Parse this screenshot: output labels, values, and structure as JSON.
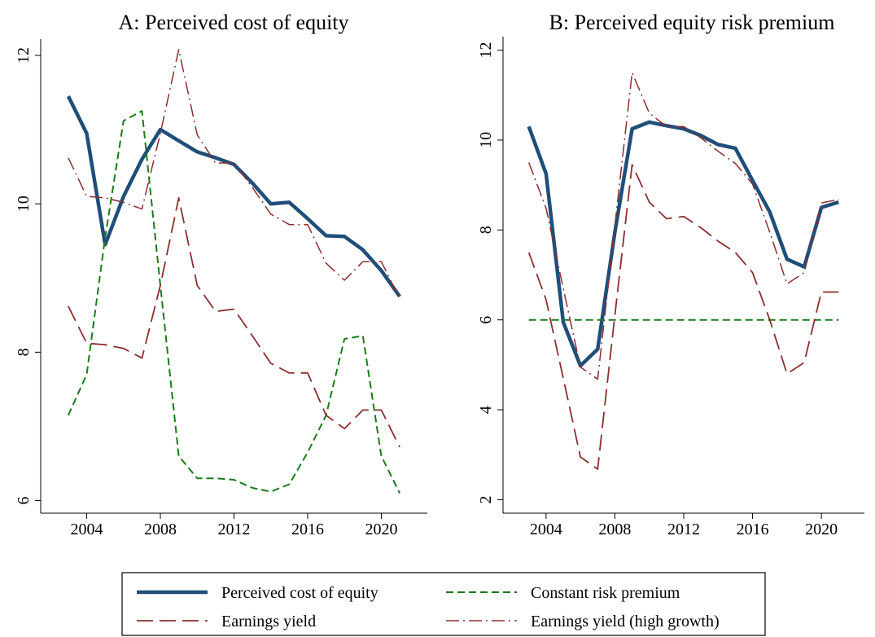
{
  "chart_data": [
    {
      "type": "line",
      "title": "A: Perceived cost of equity",
      "x": [
        2003,
        2004,
        2005,
        2006,
        2007,
        2008,
        2009,
        2010,
        2011,
        2012,
        2013,
        2014,
        2015,
        2016,
        2017,
        2018,
        2019,
        2020,
        2021
      ],
      "xlim": [
        2001.5,
        2022.5
      ],
      "xticks": [
        2004,
        2008,
        2012,
        2016,
        2020
      ],
      "ylim": [
        5.83,
        12.22
      ],
      "yticks": [
        6,
        8,
        10,
        12
      ],
      "series": [
        {
          "name": "Perceived cost of equity",
          "color": "#1f4e79",
          "dash": "solid",
          "width": 4.5,
          "values": [
            11.45,
            10.95,
            9.45,
            10.1,
            10.6,
            11.0,
            10.85,
            10.7,
            10.62,
            10.53,
            10.28,
            10.0,
            10.02,
            9.8,
            9.57,
            9.56,
            9.38,
            9.1,
            8.75
          ]
        },
        {
          "name": "Constant risk premium",
          "color": "#1a7a1a",
          "dash": "dashed",
          "width": 2,
          "values": [
            7.15,
            7.7,
            9.55,
            11.12,
            11.25,
            8.9,
            6.6,
            6.3,
            6.3,
            6.28,
            6.17,
            6.12,
            6.22,
            6.65,
            7.15,
            8.18,
            8.22,
            6.6,
            6.1
          ]
        },
        {
          "name": "Earnings yield",
          "color": "#8b2e2e",
          "dash": "longdash",
          "width": 1.8,
          "values": [
            8.62,
            8.12,
            8.1,
            8.05,
            7.92,
            8.9,
            10.08,
            8.9,
            8.55,
            8.58,
            8.22,
            7.85,
            7.72,
            7.72,
            7.15,
            6.97,
            7.22,
            7.22,
            6.72
          ]
        },
        {
          "name": "Earnings yield (high growth)",
          "color": "#8b2e2e",
          "dash": "dashdot",
          "width": 1.5,
          "values": [
            10.62,
            10.1,
            10.08,
            10.02,
            9.93,
            10.95,
            12.08,
            10.93,
            10.55,
            10.55,
            10.22,
            9.86,
            9.72,
            9.72,
            9.2,
            8.97,
            9.22,
            9.22,
            8.72
          ]
        }
      ]
    },
    {
      "type": "line",
      "title": "B: Perceived equity risk premium",
      "x": [
        2003,
        2004,
        2005,
        2006,
        2007,
        2008,
        2009,
        2010,
        2011,
        2012,
        2013,
        2014,
        2015,
        2016,
        2017,
        2018,
        2019,
        2020,
        2021
      ],
      "xlim": [
        2001.5,
        2022.5
      ],
      "xticks": [
        2004,
        2008,
        2012,
        2016,
        2020
      ],
      "ylim": [
        1.7,
        12.3
      ],
      "yticks": [
        2,
        4,
        6,
        8,
        10,
        12
      ],
      "series": [
        {
          "color": "#1f4e79",
          "dash": "solid",
          "width": 4.5,
          "values": [
            10.3,
            9.25,
            5.95,
            4.98,
            5.35,
            7.95,
            10.25,
            10.4,
            10.32,
            10.25,
            10.1,
            9.9,
            9.82,
            9.1,
            8.4,
            7.35,
            7.18,
            8.5,
            8.62
          ]
        },
        {
          "color": "#1a7a1a",
          "dash": "dashed",
          "width": 2,
          "values": [
            6,
            6,
            6,
            6,
            6,
            6,
            6,
            6,
            6,
            6,
            6,
            6,
            6,
            6,
            6,
            6,
            6,
            6,
            6
          ]
        },
        {
          "color": "#8b2e2e",
          "dash": "longdash",
          "width": 1.8,
          "values": [
            7.5,
            6.45,
            4.7,
            2.95,
            2.68,
            6.1,
            9.45,
            8.62,
            8.25,
            8.3,
            8.05,
            7.75,
            7.5,
            7.05,
            6.0,
            4.8,
            5.05,
            6.62,
            6.62
          ]
        },
        {
          "color": "#8b2e2e",
          "dash": "dashdot",
          "width": 1.5,
          "values": [
            9.5,
            8.48,
            6.7,
            4.95,
            4.68,
            8.1,
            11.5,
            10.6,
            10.3,
            10.3,
            10.05,
            9.75,
            9.48,
            9.02,
            7.95,
            6.8,
            7.05,
            8.6,
            8.68
          ]
        }
      ]
    }
  ]
}
